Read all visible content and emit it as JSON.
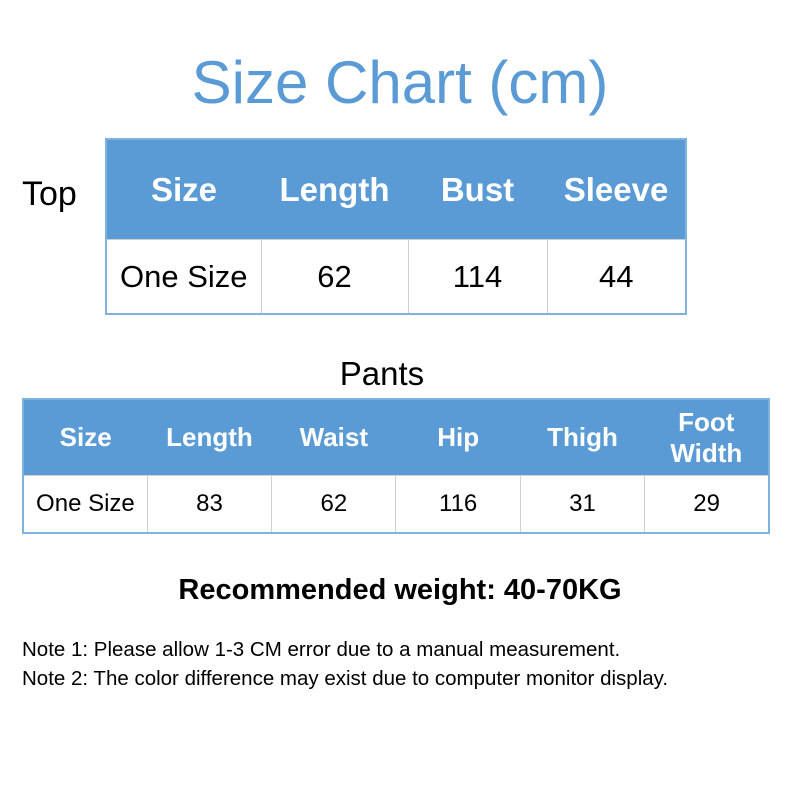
{
  "title": "Size Chart (cm)",
  "accent": "#5b9bd5",
  "top": {
    "label": "Top",
    "headers": [
      "Size",
      "Length",
      "Bust",
      "Sleeve"
    ],
    "rows": [
      [
        "One Size",
        "62",
        "114",
        "44"
      ]
    ]
  },
  "pants": {
    "label": "Pants",
    "headers": [
      "Size",
      "Length",
      "Waist",
      "Hip",
      "Thigh",
      "Foot Width"
    ],
    "rows": [
      [
        "One Size",
        "83",
        "62",
        "116",
        "31",
        "29"
      ]
    ]
  },
  "recommended": "Recommended weight: 40-70KG",
  "notes": [
    "Note 1: Please allow 1-3 CM error due to a manual measurement.",
    "Note 2: The color difference may exist due to computer monitor display."
  ]
}
